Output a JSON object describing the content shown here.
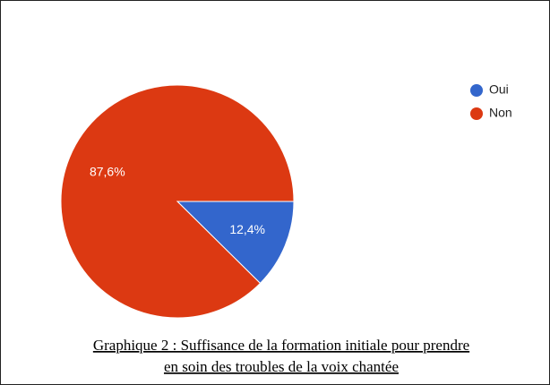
{
  "chart_data": {
    "type": "pie",
    "categories": [
      "Oui",
      "Non"
    ],
    "values": [
      12.4,
      87.6
    ],
    "value_labels": [
      "12,4%",
      "87,6%"
    ],
    "colors": [
      "#3366cc",
      "#dc3912"
    ],
    "legend": "top-right",
    "caption": [
      "Graphique 2 : Suffisance de la formation initiale pour prendre",
      "en soin des troubles de la voix chantée"
    ]
  }
}
